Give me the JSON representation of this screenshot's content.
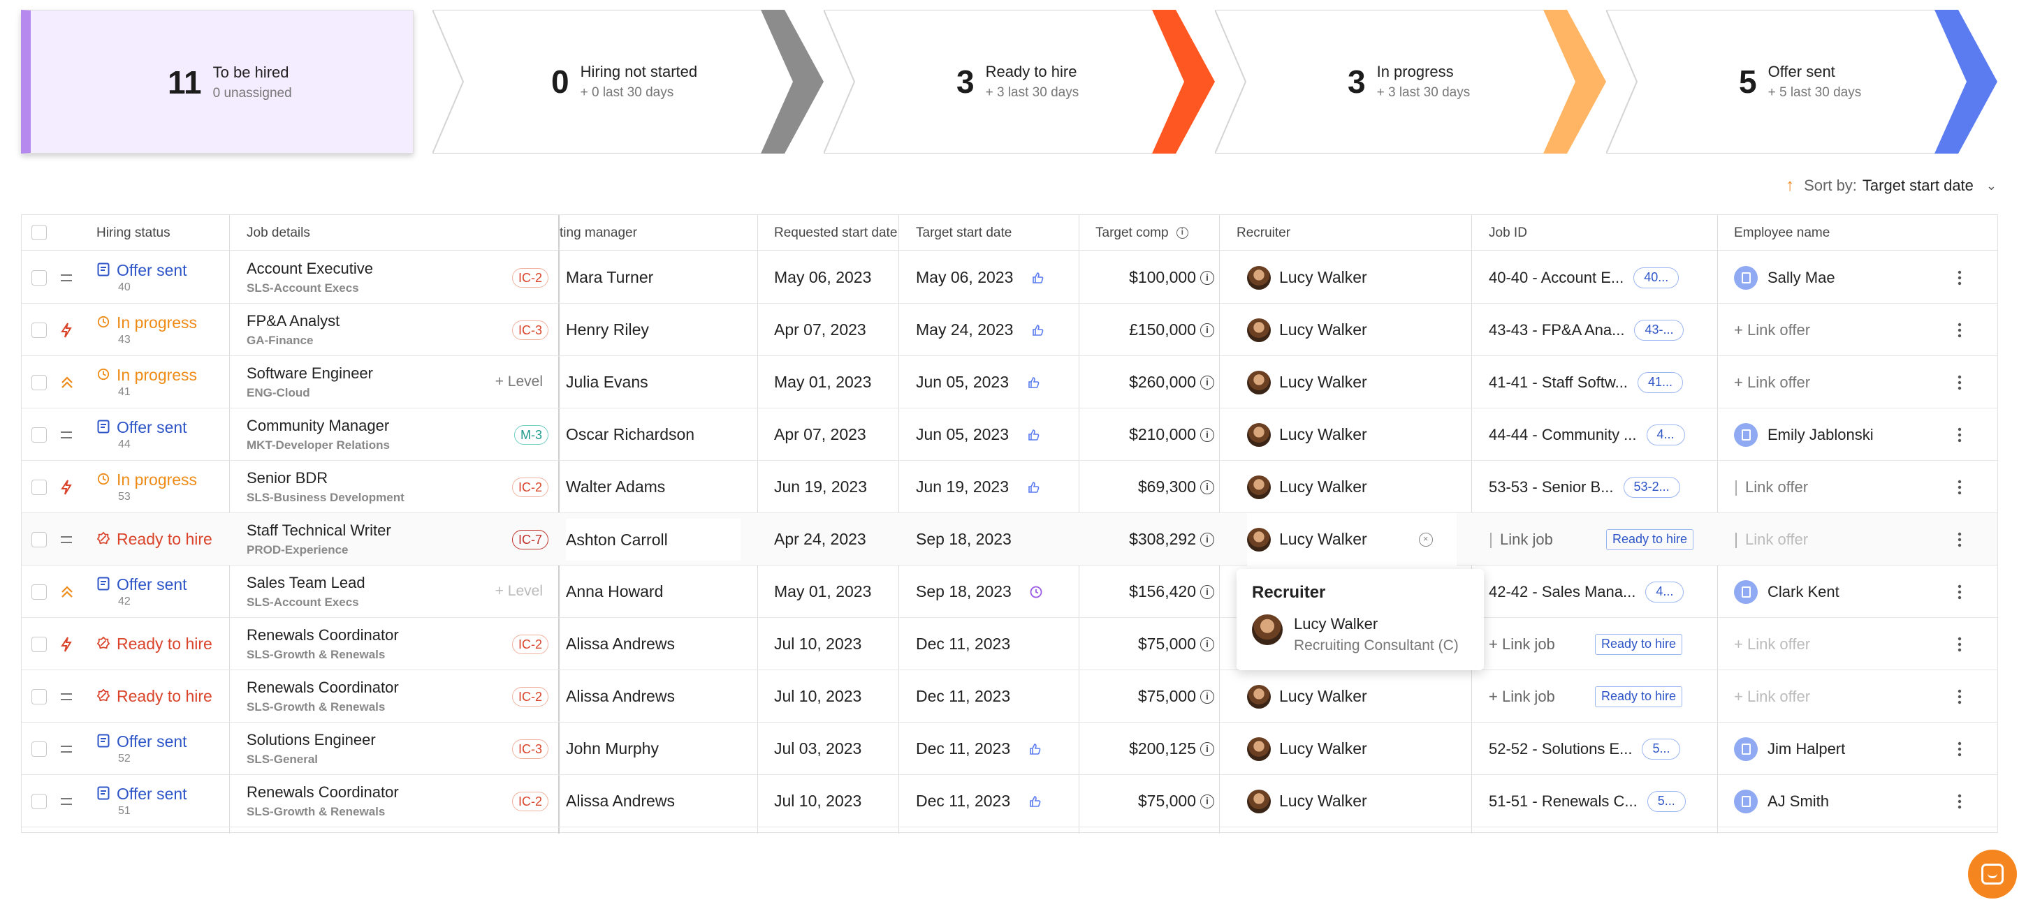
{
  "summary": {
    "to_be_hired": {
      "count": "11",
      "label": "To be hired",
      "sub": "0 unassigned",
      "accent": "#b689ee"
    },
    "hiring_not_started": {
      "count": "0",
      "label": "Hiring not started",
      "sub": "+ 0 last 30 days",
      "accent": "#8c8c8c"
    },
    "ready_to_hire": {
      "count": "3",
      "label": "Ready to hire",
      "sub": "+ 3 last 30 days",
      "accent": "#ff5722"
    },
    "in_progress": {
      "count": "3",
      "label": "In progress",
      "sub": "+ 3 last 30 days",
      "accent": "#ffb563"
    },
    "offer_sent": {
      "count": "5",
      "label": "Offer sent",
      "sub": "+ 5 last 30 days",
      "accent": "#5a7cf0"
    }
  },
  "sort": {
    "prefix": "Sort by:",
    "value": "Target start date"
  },
  "headers": {
    "hiring_status": "Hiring status",
    "job_details": "Job details",
    "hiring_manager": "ting manager",
    "requested_start": "Requested start date",
    "target_start": "Target start date",
    "target_comp": "Target comp",
    "recruiter": "Recruiter",
    "job_id": "Job ID",
    "employee_name": "Employee name"
  },
  "rows": [
    {
      "status": "Offer sent",
      "num": "40",
      "job": "Account Executive",
      "dept": "SLS-Account Execs",
      "level": "IC-2",
      "manager": "Mara Turner",
      "req": "May 06, 2023",
      "target": "May 06, 2023",
      "comp": "$100,000",
      "recruiter": "Lucy Walker",
      "jobid": "40-40 - Account E...",
      "chip": "40...",
      "employee": "Sally Mae"
    },
    {
      "status": "In progress",
      "num": "43",
      "job": "FP&A Analyst",
      "dept": "GA-Finance",
      "level": "IC-3",
      "manager": "Henry Riley",
      "req": "Apr 07, 2023",
      "target": "May 24, 2023",
      "comp": "£150,000",
      "recruiter": "Lucy Walker",
      "jobid": "43-43 - FP&A Ana...",
      "chip": "43-...",
      "employee": "+ Link offer"
    },
    {
      "status": "In progress",
      "num": "41",
      "job": "Software Engineer",
      "dept": "ENG-Cloud",
      "level": "+ Level",
      "manager": "Julia Evans",
      "req": "May 01, 2023",
      "target": "Jun 05, 2023",
      "comp": "$260,000",
      "recruiter": "Lucy Walker",
      "jobid": "41-41 - Staff Softw...",
      "chip": "41...",
      "employee": "+ Link offer"
    },
    {
      "status": "Offer sent",
      "num": "44",
      "job": "Community Manager",
      "dept": "MKT-Developer Relations",
      "level": "M-3",
      "manager": "Oscar Richardson",
      "req": "Apr 07, 2023",
      "target": "Jun 05, 2023",
      "comp": "$210,000",
      "recruiter": "Lucy Walker",
      "jobid": "44-44 - Community ...",
      "chip": "4...",
      "employee": "Emily Jablonski"
    },
    {
      "status": "In progress",
      "num": "53",
      "job": "Senior BDR",
      "dept": "SLS-Business Development",
      "level": "IC-2",
      "manager": "Walter Adams",
      "req": "Jun 19, 2023",
      "target": "Jun 19, 2023",
      "comp": "$69,300",
      "recruiter": "Lucy Walker",
      "jobid": "53-53 - Senior B...",
      "chip": "53-2...",
      "employee": "Link offer"
    },
    {
      "status": "Ready to hire",
      "num": "",
      "job": "Staff Technical Writer",
      "dept": "PROD-Experience",
      "level": "IC-7",
      "manager": "Ashton Carroll",
      "req": "Apr 24, 2023",
      "target": "Sep 18, 2023",
      "comp": "$308,292",
      "recruiter": "Lucy Walker",
      "jobid": "Link job",
      "chip": "Ready to hire",
      "employee": "Link offer"
    },
    {
      "status": "Offer sent",
      "num": "42",
      "job": "Sales Team Lead",
      "dept": "SLS-Account Execs",
      "level": "+ Level",
      "manager": "Anna Howard",
      "req": "May 01, 2023",
      "target": "Sep 18, 2023",
      "comp": "$156,420",
      "recruiter": "",
      "jobid": "42-42 - Sales Mana...",
      "chip": "4...",
      "employee": "Clark Kent"
    },
    {
      "status": "Ready to hire",
      "num": "",
      "job": "Renewals Coordinator",
      "dept": "SLS-Growth & Renewals",
      "level": "IC-2",
      "manager": "Alissa Andrews",
      "req": "Jul 10, 2023",
      "target": "Dec 11, 2023",
      "comp": "$75,000",
      "recruiter": "",
      "jobid": "+ Link job",
      "chip": "Ready to hire",
      "employee": "+ Link offer"
    },
    {
      "status": "Ready to hire",
      "num": "",
      "job": "Renewals Coordinator",
      "dept": "SLS-Growth & Renewals",
      "level": "IC-2",
      "manager": "Alissa Andrews",
      "req": "Jul 10, 2023",
      "target": "Dec 11, 2023",
      "comp": "$75,000",
      "recruiter": "Lucy Walker",
      "jobid": "+ Link job",
      "chip": "Ready to hire",
      "employee": "+ Link offer"
    },
    {
      "status": "Offer sent",
      "num": "52",
      "job": "Solutions Engineer",
      "dept": "SLS-General",
      "level": "IC-3",
      "manager": "John Murphy",
      "req": "Jul 03, 2023",
      "target": "Dec 11, 2023",
      "comp": "$200,125",
      "recruiter": "Lucy Walker",
      "jobid": "52-52 - Solutions E...",
      "chip": "5...",
      "employee": "Jim Halpert"
    },
    {
      "status": "Offer sent",
      "num": "51",
      "job": "Renewals Coordinator",
      "dept": "SLS-Growth & Renewals",
      "level": "IC-2",
      "manager": "Alissa Andrews",
      "req": "Jul 10, 2023",
      "target": "Dec 11, 2023",
      "comp": "$75,000",
      "recruiter": "Lucy Walker",
      "jobid": "51-51 - Renewals C...",
      "chip": "5...",
      "employee": "AJ Smith"
    }
  ],
  "popover": {
    "title": "Recruiter",
    "name": "Lucy Walker",
    "role": "Recruiting Consultant (C)"
  },
  "icons": {
    "offer_sent": "document-icon",
    "in_progress": "clock-icon",
    "ready_to_hire": "badge-icon",
    "priority_medium": "equals-icon",
    "priority_urgent": "lightning-icon",
    "priority_high": "double-chevron-up-icon",
    "date_ok": "thumbs-up-icon",
    "date_pending": "clock-icon",
    "info": "info-icon",
    "more": "more-vertical-icon",
    "chat": "chat-icon"
  }
}
